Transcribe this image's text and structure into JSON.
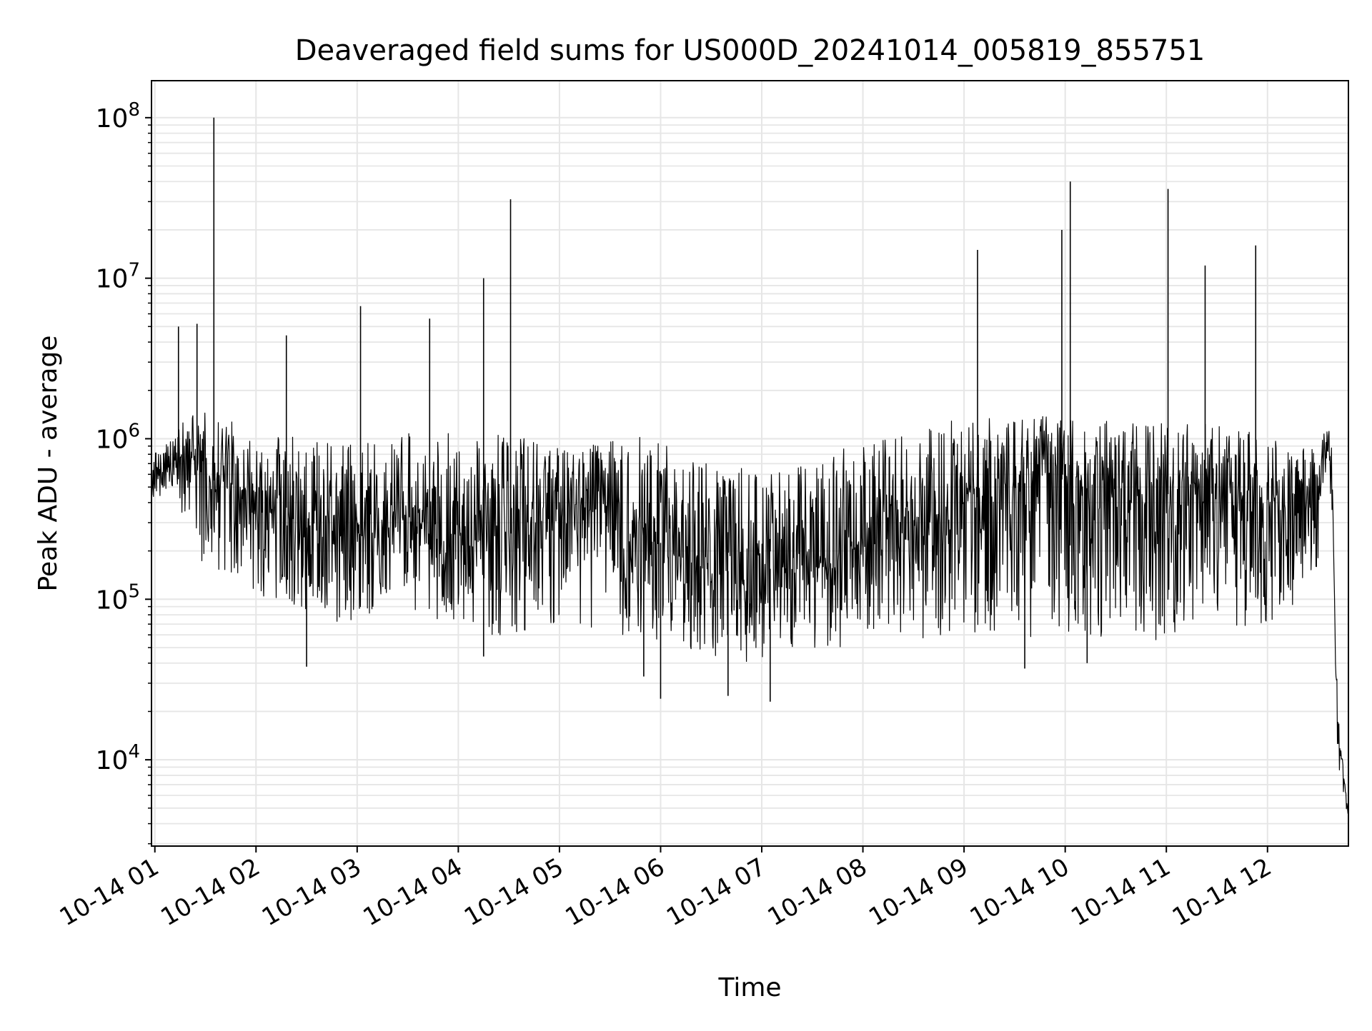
{
  "chart_data": {
    "type": "line",
    "title": "Deaveraged field sums for US000D_20241014_005819_855751",
    "xlabel": "Time",
    "ylabel": "Peak ADU - average",
    "x_scale": "time",
    "y_scale": "log",
    "xlim": [
      "2024-10-14 00:58",
      "2024-10-14 12:48"
    ],
    "ylim": [
      2900,
      170000000
    ],
    "grid": true,
    "color": "#000000",
    "grid_color": "#e6e6e6",
    "x_ticks": [
      {
        "value": "2024-10-14 01:00",
        "label": "10-14 01"
      },
      {
        "value": "2024-10-14 02:00",
        "label": "10-14 02"
      },
      {
        "value": "2024-10-14 03:00",
        "label": "10-14 03"
      },
      {
        "value": "2024-10-14 04:00",
        "label": "10-14 04"
      },
      {
        "value": "2024-10-14 05:00",
        "label": "10-14 05"
      },
      {
        "value": "2024-10-14 06:00",
        "label": "10-14 06"
      },
      {
        "value": "2024-10-14 07:00",
        "label": "10-14 07"
      },
      {
        "value": "2024-10-14 08:00",
        "label": "10-14 08"
      },
      {
        "value": "2024-10-14 09:00",
        "label": "10-14 09"
      },
      {
        "value": "2024-10-14 10:00",
        "label": "10-14 10"
      },
      {
        "value": "2024-10-14 11:00",
        "label": "10-14 11"
      },
      {
        "value": "2024-10-14 12:00",
        "label": "10-14 12"
      }
    ],
    "y_ticks": [
      {
        "value": 10000,
        "base": "10",
        "exp": "4"
      },
      {
        "value": 100000,
        "base": "10",
        "exp": "5"
      },
      {
        "value": 1000000,
        "base": "10",
        "exp": "6"
      },
      {
        "value": 10000000,
        "base": "10",
        "exp": "7"
      },
      {
        "value": 100000000,
        "base": "10",
        "exp": "8"
      }
    ],
    "series": [
      {
        "x": [
          "2024-10-14 00:58",
          "2024-10-14 01:05",
          "2024-10-14 01:12",
          "2024-10-14 01:20",
          "2024-10-14 01:35",
          "2024-10-14 01:50",
          "2024-10-14 02:10",
          "2024-10-14 02:30",
          "2024-10-14 02:50",
          "2024-10-14 03:10",
          "2024-10-14 03:30",
          "2024-10-14 03:50",
          "2024-10-14 04:10",
          "2024-10-14 04:30",
          "2024-10-14 04:50",
          "2024-10-14 05:10",
          "2024-10-14 05:30",
          "2024-10-14 05:50",
          "2024-10-14 06:10",
          "2024-10-14 06:30",
          "2024-10-14 06:50",
          "2024-10-14 07:10",
          "2024-10-14 07:30",
          "2024-10-14 07:50",
          "2024-10-14 08:10",
          "2024-10-14 08:30",
          "2024-10-14 08:50",
          "2024-10-14 09:10",
          "2024-10-14 09:30",
          "2024-10-14 09:50",
          "2024-10-14 10:10",
          "2024-10-14 10:30",
          "2024-10-14 10:50",
          "2024-10-14 11:10",
          "2024-10-14 11:30",
          "2024-10-14 11:50",
          "2024-10-14 12:10",
          "2024-10-14 12:30",
          "2024-10-14 12:35",
          "2024-10-14 12:38",
          "2024-10-14 12:40",
          "2024-10-14 12:42",
          "2024-10-14 12:45",
          "2024-10-14 12:48"
        ],
        "y": [
          500000,
          650000,
          750000,
          800000,
          550000,
          500000,
          450000,
          280000,
          250000,
          250000,
          320000,
          230000,
          300000,
          280000,
          350000,
          380000,
          320000,
          280000,
          180000,
          160000,
          140000,
          160000,
          150000,
          180000,
          350000,
          300000,
          350000,
          450000,
          500000,
          600000,
          500000,
          450000,
          400000,
          500000,
          450000,
          400000,
          350000,
          450000,
          1000000,
          700000,
          60000,
          15000,
          8000,
          4500
        ],
        "upper": [
          800000,
          900000,
          1100000,
          1500000,
          1500000,
          1200000,
          1100000,
          1000000,
          900000,
          1000000,
          1100000,
          1100000,
          1000000,
          1100000,
          900000,
          900000,
          1000000,
          1100000,
          900000,
          700000,
          700000,
          650000,
          700000,
          900000,
          1100000,
          1100000,
          1300000,
          1350000,
          1400000,
          1450000,
          1350000,
          1300000,
          1300000,
          1300000,
          1200000,
          1150000,
          950000,
          900000,
          1300000,
          1000000,
          80000,
          20000,
          9000,
          5000
        ],
        "lower": [
          400000,
          450000,
          500000,
          200000,
          120000,
          110000,
          100000,
          80000,
          70000,
          80000,
          90000,
          70000,
          60000,
          60000,
          65000,
          70000,
          60000,
          55000,
          50000,
          45000,
          40000,
          42000,
          45000,
          50000,
          60000,
          55000,
          55000,
          55000,
          55000,
          58000,
          55000,
          58000,
          55000,
          60000,
          62000,
          65000,
          80000,
          120000,
          700000,
          400000,
          30000,
          9000,
          6000,
          4000
        ],
        "spikes": [
          {
            "x": "2024-10-14 01:14",
            "y": 5000000
          },
          {
            "x": "2024-10-14 01:25",
            "y": 5200000
          },
          {
            "x": "2024-10-14 01:35",
            "y": 100000000
          },
          {
            "x": "2024-10-14 02:18",
            "y": 4400000
          },
          {
            "x": "2024-10-14 03:02",
            "y": 6700000
          },
          {
            "x": "2024-10-14 03:43",
            "y": 5600000
          },
          {
            "x": "2024-10-14 04:15",
            "y": 10000000
          },
          {
            "x": "2024-10-14 04:31",
            "y": 31000000
          },
          {
            "x": "2024-10-14 09:08",
            "y": 15000000
          },
          {
            "x": "2024-10-14 09:58",
            "y": 20000000
          },
          {
            "x": "2024-10-14 10:03",
            "y": 40000000
          },
          {
            "x": "2024-10-14 11:01",
            "y": 36000000
          },
          {
            "x": "2024-10-14 11:23",
            "y": 12000000
          },
          {
            "x": "2024-10-14 11:53",
            "y": 16000000
          }
        ],
        "dips": [
          {
            "x": "2024-10-14 02:30",
            "y": 38000
          },
          {
            "x": "2024-10-14 04:15",
            "y": 44000
          },
          {
            "x": "2024-10-14 05:50",
            "y": 33000
          },
          {
            "x": "2024-10-14 06:00",
            "y": 24000
          },
          {
            "x": "2024-10-14 06:40",
            "y": 25000
          },
          {
            "x": "2024-10-14 07:05",
            "y": 23000
          },
          {
            "x": "2024-10-14 09:36",
            "y": 37000
          },
          {
            "x": "2024-10-14 10:13",
            "y": 40000
          }
        ]
      }
    ]
  }
}
